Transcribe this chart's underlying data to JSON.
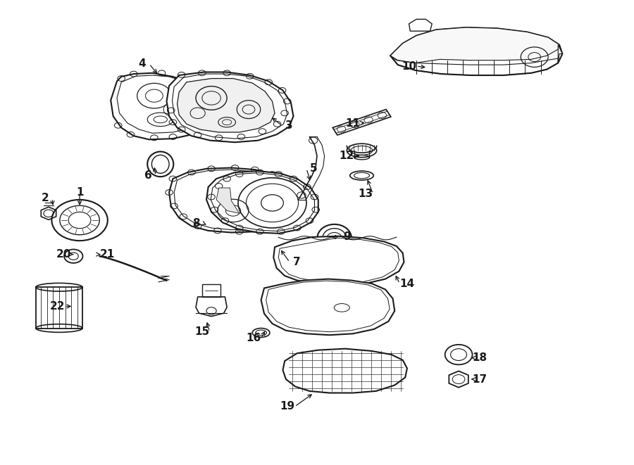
{
  "bg_color": "#ffffff",
  "line_color": "#1a1a1a",
  "label_data": [
    [
      1,
      0.118,
      0.588,
      0.118,
      0.555
    ],
    [
      2,
      0.062,
      0.575,
      0.075,
      0.555
    ],
    [
      3,
      0.455,
      0.735,
      0.425,
      0.755
    ],
    [
      4,
      0.218,
      0.87,
      0.245,
      0.845
    ],
    [
      5,
      0.495,
      0.64,
      0.49,
      0.61
    ],
    [
      6,
      0.228,
      0.625,
      0.238,
      0.648
    ],
    [
      7,
      0.468,
      0.435,
      0.44,
      0.465
    ],
    [
      8,
      0.305,
      0.52,
      0.325,
      0.515
    ],
    [
      9,
      0.548,
      0.49,
      0.52,
      0.49
    ],
    [
      10,
      0.648,
      0.865,
      0.678,
      0.862
    ],
    [
      11,
      0.558,
      0.74,
      0.58,
      0.742
    ],
    [
      12,
      0.548,
      0.668,
      0.572,
      0.668
    ],
    [
      13,
      0.578,
      0.585,
      0.58,
      0.62
    ],
    [
      14,
      0.645,
      0.388,
      0.625,
      0.41
    ],
    [
      15,
      0.315,
      0.282,
      0.322,
      0.308
    ],
    [
      16,
      0.398,
      0.268,
      0.418,
      0.288
    ],
    [
      17,
      0.762,
      0.178,
      0.748,
      0.178
    ],
    [
      18,
      0.762,
      0.225,
      0.748,
      0.225
    ],
    [
      19,
      0.452,
      0.118,
      0.495,
      0.148
    ],
    [
      20,
      0.092,
      0.452,
      0.108,
      0.452
    ],
    [
      21,
      0.162,
      0.452,
      0.152,
      0.452
    ],
    [
      22,
      0.082,
      0.338,
      0.108,
      0.338
    ]
  ]
}
